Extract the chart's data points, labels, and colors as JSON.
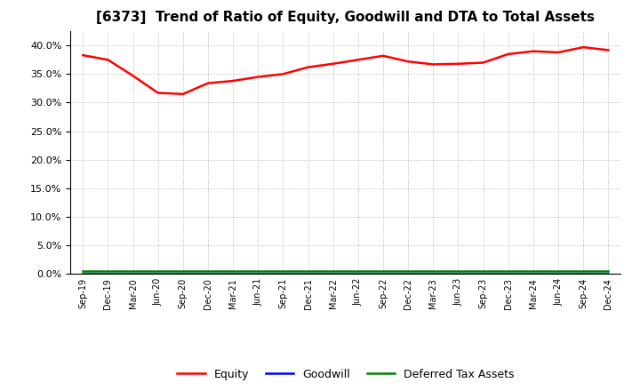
{
  "title": "[6373]  Trend of Ratio of Equity, Goodwill and DTA to Total Assets",
  "x_labels": [
    "Sep-19",
    "Dec-19",
    "Mar-20",
    "Jun-20",
    "Sep-20",
    "Dec-20",
    "Mar-21",
    "Jun-21",
    "Sep-21",
    "Dec-21",
    "Mar-22",
    "Jun-22",
    "Sep-22",
    "Dec-22",
    "Mar-23",
    "Jun-23",
    "Sep-23",
    "Dec-23",
    "Mar-24",
    "Jun-24",
    "Sep-24",
    "Dec-24"
  ],
  "equity": [
    0.383,
    0.375,
    0.347,
    0.317,
    0.315,
    0.334,
    0.338,
    0.345,
    0.35,
    0.362,
    0.368,
    0.375,
    0.382,
    0.372,
    0.367,
    0.368,
    0.37,
    0.385,
    0.39,
    0.388,
    0.397,
    0.392
  ],
  "goodwill": [
    0.0,
    0.0,
    0.0,
    0.0,
    0.0,
    0.0,
    0.0,
    0.0,
    0.0,
    0.0,
    0.0,
    0.0,
    0.0,
    0.0,
    0.0,
    0.0,
    0.0,
    0.0,
    0.0,
    0.0,
    0.0,
    0.0
  ],
  "dta": [
    0.005,
    0.005,
    0.005,
    0.005,
    0.005,
    0.005,
    0.005,
    0.005,
    0.005,
    0.005,
    0.005,
    0.005,
    0.005,
    0.005,
    0.005,
    0.005,
    0.005,
    0.005,
    0.005,
    0.005,
    0.005,
    0.005
  ],
  "equity_color": "#FF0000",
  "goodwill_color": "#0000FF",
  "dta_color": "#008000",
  "ylim": [
    0.0,
    0.425
  ],
  "yticks": [
    0.0,
    0.05,
    0.1,
    0.15,
    0.2,
    0.25,
    0.3,
    0.35,
    0.4
  ],
  "background_color": "#FFFFFF",
  "plot_bg_color": "#FFFFFF",
  "grid_color": "#AAAAAA",
  "title_fontsize": 11,
  "legend_labels": [
    "Equity",
    "Goodwill",
    "Deferred Tax Assets"
  ]
}
